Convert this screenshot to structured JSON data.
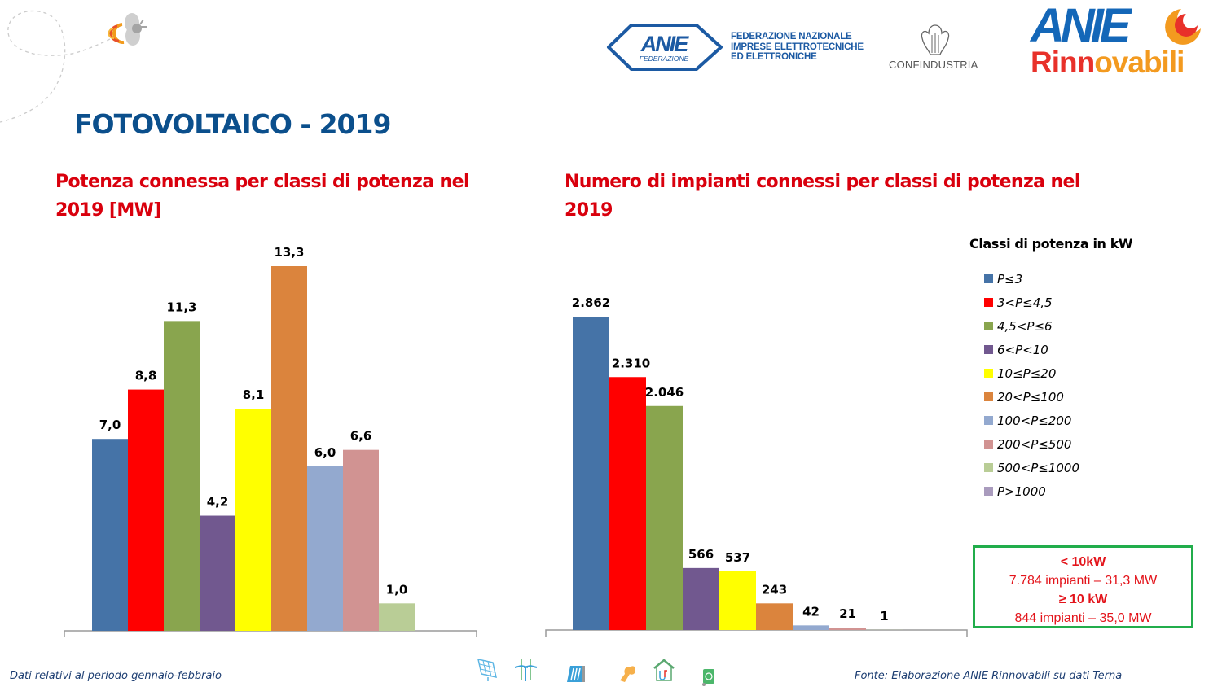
{
  "header": {
    "page_title": "FOTOVOLTAICO - 2019",
    "logos": {
      "anie_federazione": {
        "mark": "ANIE",
        "sub": "FEDERAZIONE",
        "text_lines": [
          "FEDERAZIONE NAZIONALE",
          "IMPRESE ELETTROTECNICHE",
          "ED ELETTRONICHE"
        ]
      },
      "confindustria": "CONFINDUSTRIA",
      "anie_rinnovabili": {
        "mark": "ANIE",
        "word_part1": "Rinn",
        "word_part2": "ovabili"
      }
    }
  },
  "legend": {
    "title": "Classi di potenza in kW",
    "items": [
      {
        "label": "P≤3",
        "color": "#4573a7"
      },
      {
        "label": "3<P≤4,5",
        "color": "#ff0000"
      },
      {
        "label": "4,5<P≤6",
        "color": "#89a54e"
      },
      {
        "label": "6<P<10",
        "color": "#71588f"
      },
      {
        "label": "10≤P≤20",
        "color": "#ffff00"
      },
      {
        "label": "20<P≤100",
        "color": "#db843d"
      },
      {
        "label": "100<P≤200",
        "color": "#93a9cf"
      },
      {
        "label": "200<P≤500",
        "color": "#d19392"
      },
      {
        "label": "500<P≤1000",
        "color": "#b9cd96"
      },
      {
        "label": "P>1000",
        "color": "#a99bbd"
      }
    ]
  },
  "chart_data": [
    {
      "type": "bar",
      "title": "Potenza connessa per classi di potenza nel 2019 [MW]",
      "xlabel": "",
      "ylabel": "",
      "ylim": [
        0,
        13.3
      ],
      "grid": false,
      "categories": [
        "P≤3",
        "3<P≤4,5",
        "4,5<P≤6",
        "6<P<10",
        "10≤P≤20",
        "20<P≤100",
        "100<P≤200",
        "200<P≤500",
        "500<P≤1000"
      ],
      "values": [
        7.0,
        8.8,
        11.3,
        4.2,
        8.1,
        13.3,
        6.0,
        6.6,
        1.0
      ],
      "labels": [
        "7,0",
        "8,8",
        "11,3",
        "4,2",
        "8,1",
        "13,3",
        "6,0",
        "6,6",
        "1,0"
      ],
      "colors": [
        "#4573a7",
        "#ff0000",
        "#89a54e",
        "#71588f",
        "#ffff00",
        "#db843d",
        "#93a9cf",
        "#d19392",
        "#b9cd96"
      ]
    },
    {
      "type": "bar",
      "title": "Numero di impianti connessi per classi di potenza nel 2019",
      "xlabel": "",
      "ylabel": "",
      "ylim": [
        0,
        2862
      ],
      "grid": false,
      "legend_position": "right",
      "categories": [
        "P≤3",
        "3<P≤4,5",
        "4,5<P≤6",
        "6<P<10",
        "10≤P≤20",
        "20<P≤100",
        "100<P≤200",
        "200<P≤500",
        "500<P≤1000"
      ],
      "values": [
        2862,
        2310,
        2046,
        566,
        537,
        243,
        42,
        21,
        1
      ],
      "labels": [
        "2.862",
        "2.310",
        "2.046",
        "566",
        "537",
        "243",
        "42",
        "21",
        "1"
      ],
      "colors": [
        "#4573a7",
        "#ff0000",
        "#89a54e",
        "#71588f",
        "#ffff00",
        "#db843d",
        "#93a9cf",
        "#d19392",
        "#b9cd96"
      ]
    }
  ],
  "summary": {
    "line1": "< 10kW",
    "line2": "7.784 impianti – 31,3 MW",
    "line3": "≥ 10 kW",
    "line4": "844 impianti – 35,0 MW",
    "border_color": "#21ad4b",
    "text_color": "#e3141b"
  },
  "footer": {
    "left_note": "Dati relativi al periodo gennaio-febbraio",
    "source": "Fonte: Elaborazione ANIE Rinnovabili su dati Terna",
    "icons": [
      "solar-panel-icon",
      "wind-turbine-icon",
      "hydro-dam-icon",
      "geothermal-icon",
      "heat-pump-house-icon",
      "biomass-recycle-icon"
    ]
  }
}
